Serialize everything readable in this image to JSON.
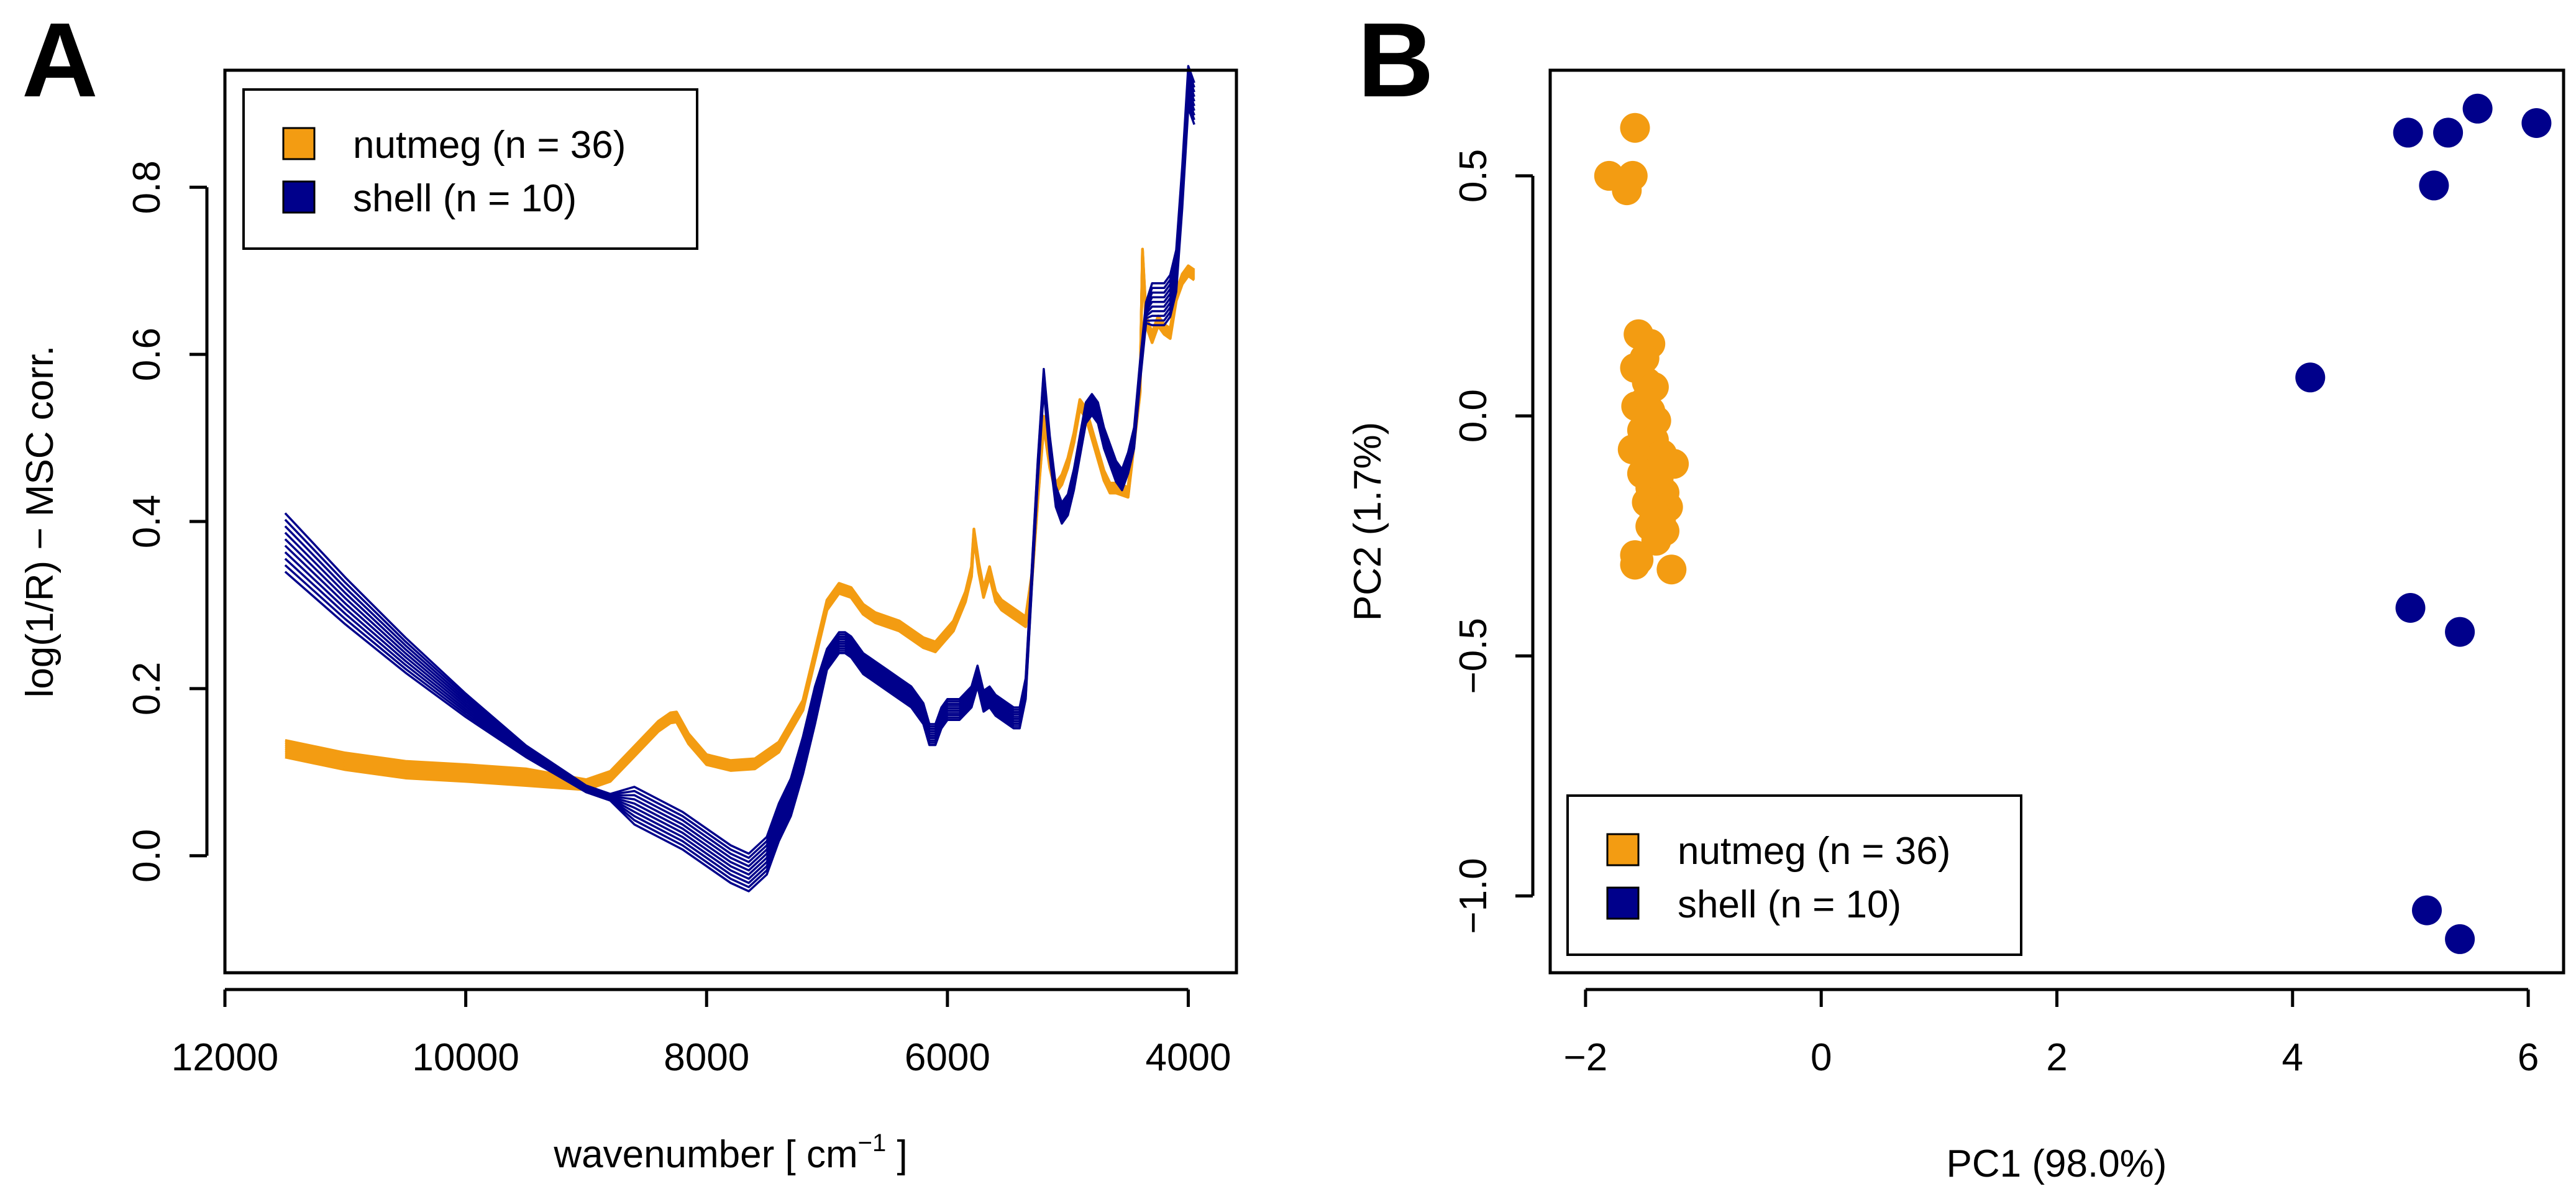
{
  "chart_data": [
    {
      "panel": "A",
      "type": "line",
      "xlabel": "wavenumber [ cm",
      "xlabel_superscript": "−1",
      "xlabel_suffix": " ]",
      "ylabel": "log(1/R) − MSC corr.",
      "xlim": [
        12000,
        3600
      ],
      "ylim": [
        -0.14,
        0.94
      ],
      "x_ticks": [
        12000,
        10000,
        8000,
        6000,
        4000
      ],
      "x_tick_labels": [
        "12000",
        "10000",
        "8000",
        "6000",
        "4000"
      ],
      "y_ticks": [
        0.0,
        0.2,
        0.4,
        0.6,
        0.8
      ],
      "y_tick_labels": [
        "0.0",
        "0.2",
        "0.4",
        "0.6",
        "0.8"
      ],
      "legend": [
        {
          "label": "nutmeg (n = 36)",
          "color": "#F39C12"
        },
        {
          "label": "shell (n = 10)",
          "color": "#00008B"
        }
      ],
      "series": [
        {
          "name": "nutmeg",
          "color": "#F39C12",
          "n": 36,
          "x": [
            11500,
            11000,
            10500,
            10000,
            9500,
            9000,
            8800,
            8600,
            8400,
            8300,
            8250,
            8150,
            8000,
            7800,
            7600,
            7400,
            7200,
            7100,
            7000,
            6900,
            6800,
            6700,
            6600,
            6400,
            6200,
            6100,
            5950,
            5850,
            5800,
            5780,
            5740,
            5700,
            5650,
            5600,
            5550,
            5450,
            5400,
            5350,
            5300,
            5250,
            5200,
            5150,
            5100,
            5050,
            5000,
            4950,
            4900,
            4850,
            4800,
            4750,
            4700,
            4650,
            4600,
            4500,
            4400,
            4380,
            4350,
            4300,
            4250,
            4200,
            4150,
            4100,
            4050,
            4000,
            3950
          ],
          "y": [
            0.128,
            0.113,
            0.103,
            0.099,
            0.094,
            0.085,
            0.095,
            0.125,
            0.155,
            0.165,
            0.166,
            0.14,
            0.115,
            0.108,
            0.11,
            0.13,
            0.18,
            0.24,
            0.3,
            0.32,
            0.315,
            0.295,
            0.285,
            0.275,
            0.255,
            0.25,
            0.275,
            0.31,
            0.34,
            0.385,
            0.345,
            0.315,
            0.34,
            0.31,
            0.3,
            0.29,
            0.285,
            0.28,
            0.33,
            0.43,
            0.52,
            0.47,
            0.44,
            0.45,
            0.47,
            0.5,
            0.54,
            0.53,
            0.505,
            0.48,
            0.455,
            0.44,
            0.44,
            0.435,
            0.56,
            0.72,
            0.64,
            0.62,
            0.64,
            0.63,
            0.625,
            0.67,
            0.69,
            0.7,
            0.695
          ]
        },
        {
          "name": "shell",
          "color": "#00008B",
          "n": 10,
          "x": [
            11500,
            11000,
            10500,
            10000,
            9500,
            9000,
            8800,
            8600,
            8400,
            8200,
            8000,
            7800,
            7650,
            7500,
            7400,
            7300,
            7200,
            7100,
            7000,
            6900,
            6850,
            6800,
            6700,
            6600,
            6500,
            6400,
            6300,
            6200,
            6150,
            6100,
            6050,
            6000,
            5900,
            5800,
            5750,
            5700,
            5650,
            5600,
            5500,
            5450,
            5400,
            5350,
            5300,
            5250,
            5200,
            5150,
            5100,
            5050,
            5000,
            4950,
            4900,
            4850,
            4800,
            4750,
            4700,
            4650,
            4600,
            4550,
            4500,
            4450,
            4400,
            4350,
            4300,
            4250,
            4200,
            4150,
            4100,
            4050,
            4000,
            3950
          ],
          "y": [
            0.375,
            0.305,
            0.24,
            0.18,
            0.125,
            0.08,
            0.07,
            0.06,
            0.045,
            0.03,
            0.01,
            -0.01,
            -0.02,
            0.0,
            0.04,
            0.07,
            0.12,
            0.18,
            0.235,
            0.255,
            0.255,
            0.25,
            0.23,
            0.22,
            0.21,
            0.2,
            0.19,
            0.17,
            0.145,
            0.145,
            0.165,
            0.175,
            0.175,
            0.19,
            0.215,
            0.185,
            0.19,
            0.18,
            0.17,
            0.165,
            0.165,
            0.2,
            0.33,
            0.46,
            0.57,
            0.49,
            0.43,
            0.41,
            0.42,
            0.45,
            0.49,
            0.53,
            0.54,
            0.53,
            0.5,
            0.48,
            0.46,
            0.45,
            0.47,
            0.5,
            0.58,
            0.65,
            0.66,
            0.66,
            0.66,
            0.67,
            0.7,
            0.8,
            0.92,
            0.9
          ]
        }
      ]
    },
    {
      "panel": "B",
      "type": "scatter",
      "xlabel": "PC1 (98.0%)",
      "ylabel": "PC2 (1.7%)",
      "xlim": [
        -2.3,
        6.3
      ],
      "ylim": [
        -1.16,
        0.72
      ],
      "x_ticks": [
        -2,
        0,
        2,
        4,
        6
      ],
      "x_tick_labels": [
        "−2",
        "0",
        "2",
        "4",
        "6"
      ],
      "y_ticks": [
        0.5,
        0.0,
        -0.5,
        -1.0
      ],
      "y_tick_labels": [
        "0.5",
        "0.0",
        "−0.5",
        "−1.0"
      ],
      "legend": [
        {
          "label": "nutmeg (n = 36)",
          "color": "#F39C12"
        },
        {
          "label": "shell (n = 10)",
          "color": "#00008B"
        }
      ],
      "series": [
        {
          "name": "nutmeg",
          "color": "#F39C12",
          "points": [
            [
              -1.58,
              0.6
            ],
            [
              -1.8,
              0.5
            ],
            [
              -1.6,
              0.5
            ],
            [
              -1.65,
              0.47
            ],
            [
              -1.55,
              0.17
            ],
            [
              -1.45,
              0.15
            ],
            [
              -1.5,
              0.12
            ],
            [
              -1.58,
              0.1
            ],
            [
              -1.48,
              0.07
            ],
            [
              -1.42,
              0.06
            ],
            [
              -1.5,
              0.03
            ],
            [
              -1.57,
              0.02
            ],
            [
              -1.45,
              0.01
            ],
            [
              -1.4,
              -0.01
            ],
            [
              -1.52,
              -0.03
            ],
            [
              -1.42,
              -0.05
            ],
            [
              -1.6,
              -0.07
            ],
            [
              -1.48,
              -0.08
            ],
            [
              -1.35,
              -0.08
            ],
            [
              -1.25,
              -0.1
            ],
            [
              -1.45,
              -0.11
            ],
            [
              -1.52,
              -0.12
            ],
            [
              -1.38,
              -0.13
            ],
            [
              -1.45,
              -0.15
            ],
            [
              -1.33,
              -0.16
            ],
            [
              -1.48,
              -0.18
            ],
            [
              -1.3,
              -0.19
            ],
            [
              -1.42,
              -0.2
            ],
            [
              -1.36,
              -0.22
            ],
            [
              -1.45,
              -0.23
            ],
            [
              -1.33,
              -0.24
            ],
            [
              -1.4,
              -0.26
            ],
            [
              -1.58,
              -0.29
            ],
            [
              -1.55,
              -0.3
            ],
            [
              -1.58,
              -0.31
            ],
            [
              -1.27,
              -0.32
            ]
          ]
        },
        {
          "name": "shell",
          "color": "#00008B",
          "points": [
            [
              4.15,
              0.08
            ],
            [
              4.98,
              0.59
            ],
            [
              5.32,
              0.59
            ],
            [
              5.57,
              0.64
            ],
            [
              6.07,
              0.61
            ],
            [
              5.2,
              0.48
            ],
            [
              5.0,
              -0.4
            ],
            [
              5.42,
              -0.45
            ],
            [
              5.14,
              -1.03
            ],
            [
              5.42,
              -1.09
            ]
          ]
        }
      ]
    }
  ]
}
